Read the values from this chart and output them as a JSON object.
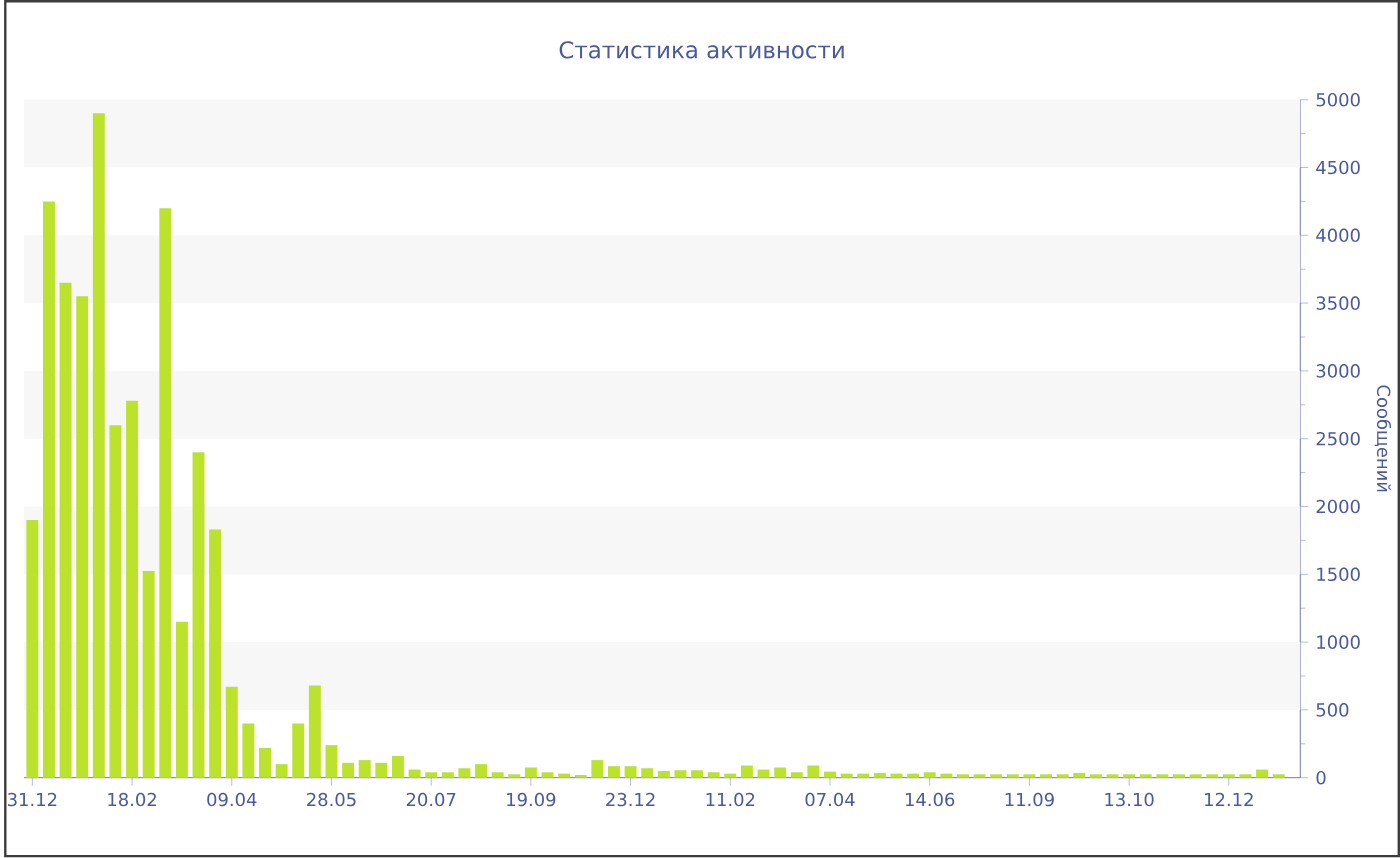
{
  "chart_data": {
    "type": "bar",
    "title": "Статистика активности",
    "ylabel": "Сообщений",
    "categories": [
      "31.12",
      null,
      null,
      null,
      null,
      null,
      "18.02",
      null,
      null,
      null,
      null,
      null,
      "09.04",
      null,
      null,
      null,
      null,
      null,
      "28.05",
      null,
      null,
      null,
      null,
      null,
      "20.07",
      null,
      null,
      null,
      null,
      null,
      "19.09",
      null,
      null,
      null,
      null,
      null,
      "23.12",
      null,
      null,
      null,
      null,
      null,
      "11.02",
      null,
      null,
      null,
      null,
      null,
      "07.04",
      null,
      null,
      null,
      null,
      null,
      "14.06",
      null,
      null,
      null,
      null,
      null,
      "11.09",
      null,
      null,
      null,
      null,
      null,
      "13.10",
      null,
      null,
      null,
      null,
      null,
      "12.12",
      null,
      null,
      null
    ],
    "values": [
      1900,
      4250,
      3650,
      3550,
      4900,
      2600,
      2780,
      1525,
      4200,
      1150,
      2400,
      1830,
      670,
      400,
      220,
      100,
      400,
      680,
      240,
      110,
      130,
      110,
      160,
      60,
      40,
      40,
      70,
      100,
      40,
      25,
      75,
      40,
      30,
      20,
      130,
      85,
      85,
      70,
      50,
      55,
      55,
      40,
      30,
      90,
      60,
      75,
      40,
      90,
      45,
      30,
      30,
      35,
      30,
      30,
      40,
      30,
      25,
      25,
      25,
      25,
      25,
      25,
      25,
      35,
      25,
      25,
      25,
      25,
      25,
      25,
      25,
      25,
      25,
      25,
      60,
      25
    ],
    "color": "#bde22e",
    "ylim": [
      0,
      5000
    ],
    "yticks": [
      0,
      500,
      1000,
      1500,
      2000,
      2500,
      3000,
      3500,
      4000,
      4500,
      5000
    ],
    "bands": [
      {
        "axis": "y",
        "from": 500,
        "to": 1000,
        "color": "#f7f7f7"
      },
      {
        "axis": "y",
        "from": 1500,
        "to": 2000,
        "color": "#f7f7f7"
      },
      {
        "axis": "y",
        "from": 2500,
        "to": 3000,
        "color": "#f7f7f7"
      },
      {
        "axis": "y",
        "from": 3500,
        "to": 4000,
        "color": "#f7f7f7"
      },
      {
        "axis": "y",
        "from": 4500,
        "to": 5000,
        "color": "#f7f7f7"
      }
    ]
  }
}
